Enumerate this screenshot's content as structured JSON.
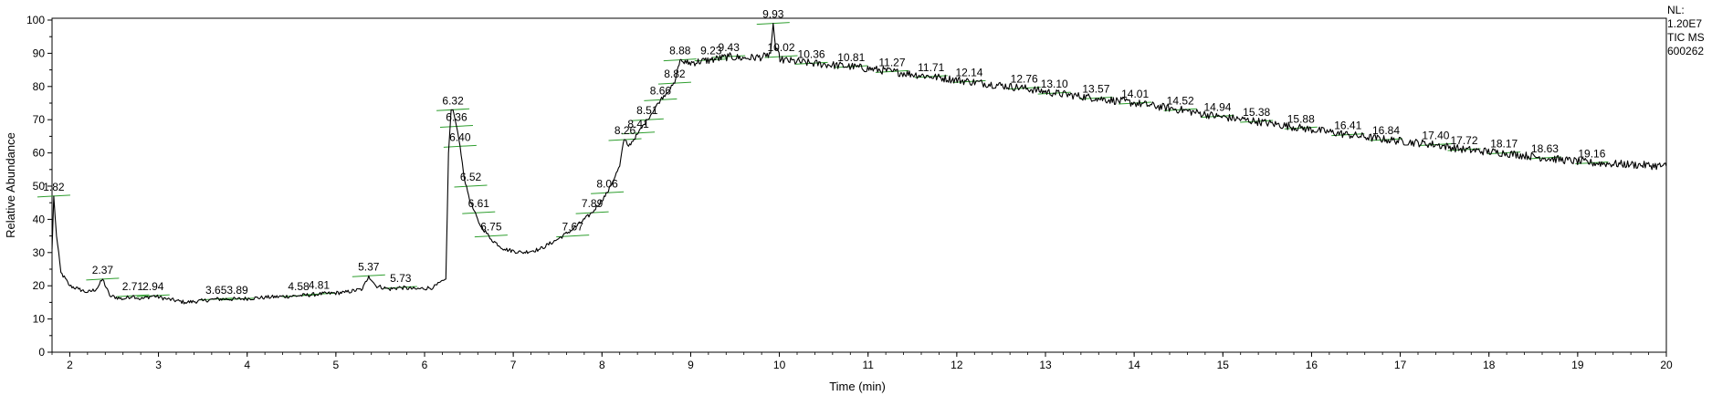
{
  "chart_data": {
    "type": "line",
    "title": "",
    "xlabel": "Time (min)",
    "ylabel": "Relative Abundance",
    "xlim": [
      1.8,
      20
    ],
    "ylim": [
      0,
      100
    ],
    "x_ticks": [
      2,
      3,
      4,
      5,
      6,
      7,
      8,
      9,
      10,
      11,
      12,
      13,
      14,
      15,
      16,
      17,
      18,
      19,
      20
    ],
    "y_ticks": [
      0,
      10,
      20,
      30,
      40,
      50,
      60,
      70,
      80,
      90,
      100
    ],
    "grid": false,
    "series": [
      {
        "name": "TIC MS 600262",
        "color": "#000000",
        "x": [
          1.8,
          1.82,
          1.85,
          1.9,
          2.0,
          2.1,
          2.2,
          2.3,
          2.37,
          2.45,
          2.6,
          2.71,
          2.8,
          2.94,
          3.1,
          3.3,
          3.5,
          3.65,
          3.89,
          4.2,
          4.58,
          4.81,
          5.1,
          5.3,
          5.37,
          5.45,
          5.6,
          5.73,
          5.9,
          6.1,
          6.24,
          6.27,
          6.3,
          6.32,
          6.36,
          6.4,
          6.45,
          6.52,
          6.61,
          6.75,
          6.9,
          7.1,
          7.3,
          7.5,
          7.67,
          7.89,
          8.06,
          8.2,
          8.24,
          8.26,
          8.3,
          8.41,
          8.51,
          8.66,
          8.82,
          8.86,
          8.88,
          8.95,
          9.23,
          9.43,
          9.6,
          9.85,
          9.9,
          9.93,
          9.96,
          10.02,
          10.36,
          10.81,
          11.27,
          11.71,
          12.14,
          12.76,
          13.1,
          13.57,
          14.01,
          14.52,
          14.94,
          15.38,
          15.88,
          16.41,
          16.84,
          17.4,
          17.72,
          18.17,
          18.63,
          19.16,
          19.6,
          20.0
        ],
        "y": [
          31,
          47,
          35,
          24,
          20,
          19,
          18,
          19,
          22,
          17,
          16,
          17,
          16,
          17,
          16,
          15,
          15.5,
          16,
          16,
          16.5,
          17,
          17.5,
          18,
          19,
          23,
          20,
          19,
          19.5,
          19,
          19.5,
          22,
          60,
          73,
          73,
          68,
          62,
          52,
          45,
          39,
          34,
          31,
          30,
          31,
          34,
          37,
          42,
          48,
          56,
          63,
          64,
          62,
          66,
          70,
          76,
          81,
          86,
          88,
          87,
          88,
          89,
          88.5,
          89,
          90,
          99,
          91,
          88,
          87,
          86,
          84.5,
          83,
          81.5,
          79.5,
          78,
          76.5,
          75,
          73,
          71,
          69.5,
          67.5,
          65.5,
          64,
          62.5,
          61,
          60,
          58.5,
          57,
          56.5,
          56
        ]
      }
    ],
    "peak_labels": [
      {
        "x": 1.82,
        "label": "1.82",
        "y": 47
      },
      {
        "x": 2.37,
        "label": "2.37",
        "y": 22
      },
      {
        "x": 2.71,
        "label": "2.71",
        "y": 17
      },
      {
        "x": 2.94,
        "label": "2.94",
        "y": 17
      },
      {
        "x": 3.65,
        "label": "3.65",
        "y": 16
      },
      {
        "x": 3.89,
        "label": "3.89",
        "y": 16
      },
      {
        "x": 4.58,
        "label": "4.58",
        "y": 17
      },
      {
        "x": 4.81,
        "label": "4.81",
        "y": 17.5
      },
      {
        "x": 5.37,
        "label": "5.37",
        "y": 23
      },
      {
        "x": 5.73,
        "label": "5.73",
        "y": 19.5
      },
      {
        "x": 6.32,
        "label": "6.32",
        "y": 73
      },
      {
        "x": 6.36,
        "label": "6.36",
        "y": 68
      },
      {
        "x": 6.4,
        "label": "6.40",
        "y": 62
      },
      {
        "x": 6.52,
        "label": "6.52",
        "y": 50
      },
      {
        "x": 6.61,
        "label": "6.61",
        "y": 42
      },
      {
        "x": 6.75,
        "label": "6.75",
        "y": 35
      },
      {
        "x": 7.67,
        "label": "7.67",
        "y": 35
      },
      {
        "x": 7.89,
        "label": "7.89",
        "y": 42
      },
      {
        "x": 8.06,
        "label": "8.06",
        "y": 48
      },
      {
        "x": 8.26,
        "label": "8.26",
        "y": 64
      },
      {
        "x": 8.41,
        "label": "8.41",
        "y": 66
      },
      {
        "x": 8.51,
        "label": "8.51",
        "y": 70
      },
      {
        "x": 8.66,
        "label": "8.66",
        "y": 76
      },
      {
        "x": 8.82,
        "label": "8.82",
        "y": 81
      },
      {
        "x": 8.88,
        "label": "8.88",
        "y": 88
      },
      {
        "x": 9.23,
        "label": "9.23",
        "y": 88
      },
      {
        "x": 9.43,
        "label": "9.43",
        "y": 89
      },
      {
        "x": 9.93,
        "label": "9.93",
        "y": 99
      },
      {
        "x": 10.02,
        "label": "10.02",
        "y": 89
      },
      {
        "x": 10.36,
        "label": "10.36",
        "y": 87
      },
      {
        "x": 10.81,
        "label": "10.81",
        "y": 86
      },
      {
        "x": 11.27,
        "label": "11.27",
        "y": 84.5
      },
      {
        "x": 11.71,
        "label": "11.71",
        "y": 83
      },
      {
        "x": 12.14,
        "label": "12.14",
        "y": 81.5
      },
      {
        "x": 12.76,
        "label": "12.76",
        "y": 79.5
      },
      {
        "x": 13.1,
        "label": "13.10",
        "y": 78
      },
      {
        "x": 13.57,
        "label": "13.57",
        "y": 76.5
      },
      {
        "x": 14.01,
        "label": "14.01",
        "y": 75
      },
      {
        "x": 14.52,
        "label": "14.52",
        "y": 73
      },
      {
        "x": 14.94,
        "label": "14.94",
        "y": 71
      },
      {
        "x": 15.38,
        "label": "15.38",
        "y": 69.5
      },
      {
        "x": 15.88,
        "label": "15.88",
        "y": 67.5
      },
      {
        "x": 16.41,
        "label": "16.41",
        "y": 65.5
      },
      {
        "x": 16.84,
        "label": "16.84",
        "y": 64
      },
      {
        "x": 17.4,
        "label": "17.40",
        "y": 62.5
      },
      {
        "x": 17.72,
        "label": "17.72",
        "y": 61
      },
      {
        "x": 18.17,
        "label": "18.17",
        "y": 60
      },
      {
        "x": 18.63,
        "label": "18.63",
        "y": 58.5
      },
      {
        "x": 19.16,
        "label": "19.16",
        "y": 57
      }
    ],
    "baseline_color": "#2e9e2e"
  },
  "info": {
    "nl_label": "NL:",
    "nl_value": "1.20E7",
    "trace_label": "TIC  MS",
    "sample_id": "600262"
  }
}
